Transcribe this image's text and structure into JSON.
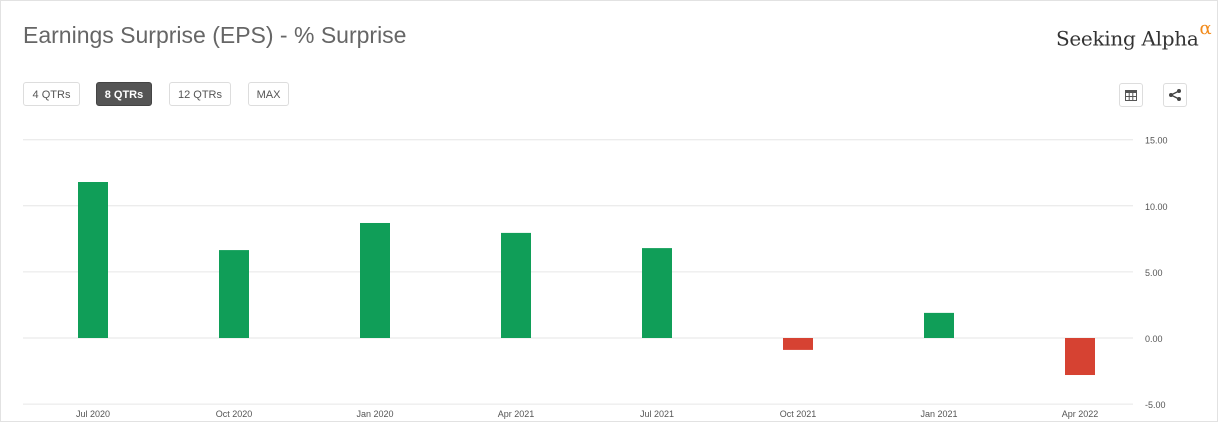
{
  "header": {
    "title": "Earnings Surprise (EPS) - % Surprise",
    "logo_text": "Seeking Alpha",
    "logo_symbol": "α"
  },
  "range_buttons": [
    {
      "label": "4 QTRs",
      "active": false
    },
    {
      "label": "8 QTRs",
      "active": true
    },
    {
      "label": "12 QTRs",
      "active": false
    },
    {
      "label": "MAX",
      "active": false
    }
  ],
  "toolbar": {
    "table_icon": "table-icon",
    "share_icon": "share-icon"
  },
  "colors": {
    "positive": "#109e58",
    "negative": "#d64232",
    "grid": "#e6e6e6"
  },
  "chart_data": {
    "type": "bar",
    "title": "Earnings Surprise (EPS) - % Surprise",
    "categories": [
      "Jul 2020",
      "Oct 2020",
      "Jan 2020",
      "Apr 2021",
      "Jul 2021",
      "Oct 2021",
      "Jan 2021",
      "Apr 2022"
    ],
    "values": [
      11.8,
      6.65,
      8.7,
      7.95,
      6.8,
      -0.9,
      1.9,
      -2.8
    ],
    "ylim": [
      -5,
      15
    ],
    "yticks": [
      "15.00",
      "10.00",
      "5.00",
      "0.00",
      "-5.00"
    ],
    "ytick_values": [
      15,
      10,
      5,
      0,
      -5
    ],
    "y_axis_side": "right",
    "grid": true,
    "legend": "none"
  }
}
